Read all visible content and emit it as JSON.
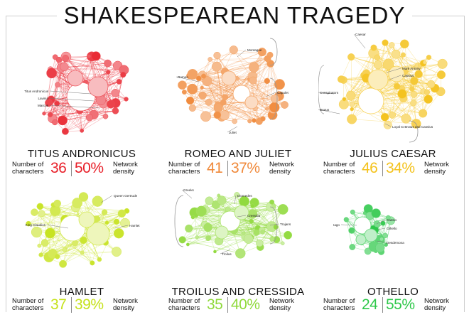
{
  "title": "SHAKESPEAREAN TRAGEDY",
  "labels": {
    "characters": [
      "Number of",
      "characters"
    ],
    "density": [
      "Network",
      "density"
    ]
  },
  "panels": [
    {
      "id": "titus",
      "name": "TITUS ANDRONICUS",
      "characters": "36",
      "density": "50%",
      "color": "#e8202a",
      "annotations": [
        "Titus Andronicus",
        "Lavinia",
        "Marcus"
      ]
    },
    {
      "id": "romeo",
      "name": "ROMEO AND JULIET",
      "characters": "41",
      "density": "37%",
      "color": "#f0893a",
      "annotations": [
        "Montague",
        "Romeo",
        "Capulet",
        "Juliet"
      ]
    },
    {
      "id": "julius",
      "name": "JULIUS CAESAR",
      "characters": "46",
      "density": "34%",
      "color": "#f4c21c",
      "annotations": [
        "Caesar",
        "Mark Antony",
        "Cassius",
        "Conspirators",
        "Brutus",
        "Loyal to Brutus and Cassius"
      ]
    },
    {
      "id": "hamlet",
      "name": "HAMLET",
      "characters": "37",
      "density": "39%",
      "color": "#c6e21c",
      "annotations": [
        "Queen Gertrude",
        "King Claudius",
        "Hamlet"
      ]
    },
    {
      "id": "troilus",
      "name": "TROILUS AND CRESSIDA",
      "characters": "35",
      "density": "40%",
      "color": "#8fd93a",
      "annotations": [
        "Greeks",
        "Diomedes",
        "Cressida",
        "Trojans",
        "Troilus"
      ]
    },
    {
      "id": "othello",
      "name": "OTHELLO",
      "characters": "24",
      "density": "55%",
      "color": "#2ec84a",
      "annotations": [
        "Iago",
        "Cassio",
        "Othello",
        "Desdemona"
      ]
    }
  ]
}
